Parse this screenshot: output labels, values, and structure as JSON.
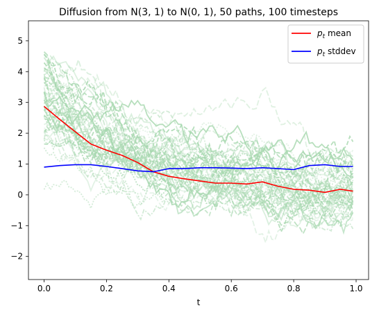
{
  "chart_data": {
    "type": "line",
    "title": "Diffusion from N(3, 1) to N(0, 1), 50 paths, 100 timesteps",
    "xlabel": "t",
    "ylabel": "",
    "xlim": [
      -0.05,
      1.04
    ],
    "ylim": [
      -2.75,
      5.65
    ],
    "x_ticks": [
      0.0,
      0.2,
      0.4,
      0.6,
      0.8,
      1.0
    ],
    "x_tick_labels": [
      "0.0",
      "0.2",
      "0.4",
      "0.6",
      "0.8",
      "1.0"
    ],
    "y_ticks": [
      -2,
      -1,
      0,
      1,
      2,
      3,
      4,
      5
    ],
    "y_tick_labels": [
      "−2",
      "−1",
      "0",
      "1",
      "2",
      "3",
      "4",
      "5"
    ],
    "grid": false,
    "legend": {
      "placement": "top-right",
      "entries": [
        {
          "series": "mean",
          "label_main": "p",
          "label_sub": "t",
          "label_rest": " mean"
        },
        {
          "series": "stddev",
          "label_main": "p",
          "label_sub": "t",
          "label_rest": " stddev"
        }
      ]
    },
    "colors": {
      "mean": "#ff0000",
      "stddev": "#0000ff",
      "paths": "#a8d8b0",
      "axes": "#000000"
    },
    "n_paths": 50,
    "n_timesteps": 100,
    "t": [
      0.0,
      0.05,
      0.1,
      0.15,
      0.2,
      0.25,
      0.3,
      0.35,
      0.4,
      0.45,
      0.5,
      0.55,
      0.6,
      0.65,
      0.7,
      0.75,
      0.8,
      0.85,
      0.9,
      0.95,
      0.99
    ],
    "series": [
      {
        "name": "mean",
        "values": [
          2.87,
          2.45,
          2.05,
          1.65,
          1.45,
          1.28,
          1.05,
          0.75,
          0.6,
          0.52,
          0.45,
          0.38,
          0.38,
          0.35,
          0.42,
          0.28,
          0.18,
          0.15,
          0.08,
          0.18,
          0.12
        ]
      },
      {
        "name": "stddev",
        "values": [
          0.9,
          0.95,
          0.98,
          0.98,
          0.92,
          0.85,
          0.78,
          0.75,
          0.85,
          0.85,
          0.88,
          0.88,
          0.87,
          0.85,
          0.88,
          0.85,
          0.82,
          0.95,
          0.98,
          0.92,
          0.92
        ]
      }
    ]
  }
}
